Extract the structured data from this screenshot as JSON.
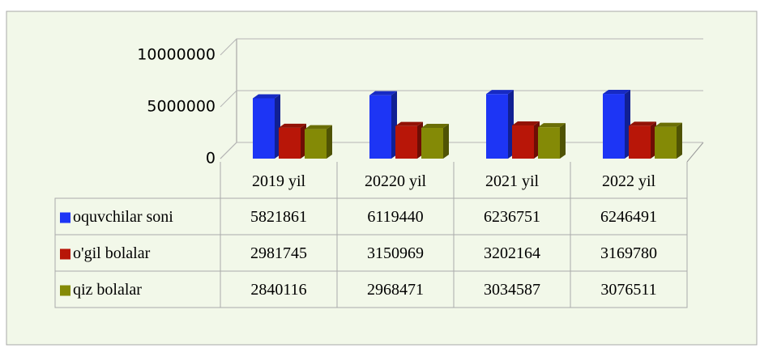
{
  "chart_data": {
    "type": "bar3d",
    "categories": [
      "2019 yil",
      "20220 yil",
      "2021 yil",
      "2022 yil"
    ],
    "series": [
      {
        "name": "oquvchilar soni",
        "color": "#1d35f5",
        "values": [
          5821861,
          6119440,
          6236751,
          6246491
        ]
      },
      {
        "name": "o'gil bolalar",
        "color": "#b81608",
        "values": [
          2981745,
          3150969,
          3202164,
          3169780
        ]
      },
      {
        "name": "qiz bolalar",
        "color": "#848a06",
        "values": [
          2840116,
          2968471,
          3034587,
          3076511
        ]
      }
    ],
    "ylim": [
      0,
      10000000
    ],
    "yticks": [
      0,
      5000000,
      10000000
    ],
    "grid": true
  }
}
